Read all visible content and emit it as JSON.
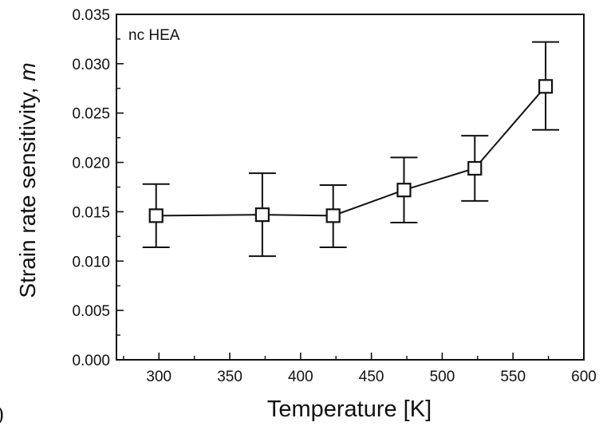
{
  "chart_data": {
    "type": "line",
    "title": "",
    "annotation": "nc HEA",
    "xlabel": "Temperature [K]",
    "ylabel_text": "Strain rate sensitivity, ",
    "ylabel_symbol": "m",
    "xlim": [
      270,
      600
    ],
    "ylim": [
      0.0,
      0.035
    ],
    "x_ticks": [
      300,
      350,
      400,
      450,
      500,
      550,
      600
    ],
    "x_tick_labels": [
      "300",
      "350",
      "400",
      "450",
      "500",
      "550",
      "600"
    ],
    "y_ticks": [
      0.0,
      0.005,
      0.01,
      0.015,
      0.02,
      0.025,
      0.03,
      0.035
    ],
    "y_tick_labels": [
      "0.000",
      "0.005",
      "0.010",
      "0.015",
      "0.020",
      "0.025",
      "0.030",
      "0.035"
    ],
    "grid": false,
    "legend": "none",
    "marker": "open-square",
    "line_color": "#111111",
    "series": [
      {
        "x": [
          298,
          373,
          423,
          473,
          523,
          573
        ],
        "y": [
          0.0146,
          0.0147,
          0.0146,
          0.0172,
          0.0194,
          0.0277
        ],
        "y_err_low": [
          0.0114,
          0.0105,
          0.0114,
          0.0139,
          0.0161,
          0.0233
        ],
        "y_err_high": [
          0.0178,
          0.0189,
          0.0177,
          0.0205,
          0.0227,
          0.0322
        ]
      }
    ]
  },
  "stray_glyph": ")"
}
